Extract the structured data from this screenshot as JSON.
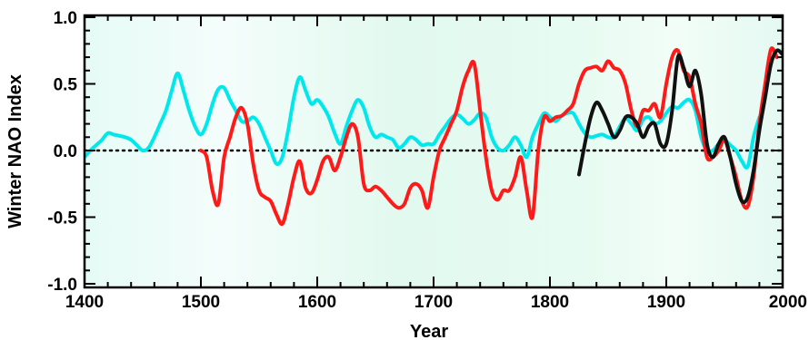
{
  "chart_data": {
    "type": "line",
    "title": "",
    "xlabel": "Year",
    "ylabel": "Winter NAO Index",
    "xlim": [
      1400,
      2000
    ],
    "ylim": [
      -1.05,
      1.0
    ],
    "x_ticks": [
      1400,
      1500,
      1600,
      1700,
      1800,
      1900,
      2000
    ],
    "x_tick_labels": [
      "1400",
      "1500",
      "1600",
      "1700",
      "1800",
      "1900",
      "2000"
    ],
    "y_ticks": [
      -1.0,
      -0.5,
      0.0,
      0.5,
      1.0
    ],
    "y_tick_labels": [
      "-1.0",
      "-0.5",
      "0.0",
      "0.5",
      "1.0"
    ],
    "zero_line": "dotted",
    "grid": false,
    "background": "gradient light green",
    "series": [
      {
        "color": "#00e8ec",
        "x": [
          1400,
          1405,
          1410,
          1415,
          1420,
          1425,
          1430,
          1435,
          1440,
          1445,
          1450,
          1455,
          1460,
          1465,
          1470,
          1475,
          1480,
          1485,
          1490,
          1495,
          1500,
          1505,
          1510,
          1515,
          1520,
          1525,
          1530,
          1535,
          1540,
          1545,
          1550,
          1555,
          1560,
          1565,
          1570,
          1575,
          1580,
          1585,
          1590,
          1595,
          1600,
          1605,
          1610,
          1615,
          1620,
          1625,
          1630,
          1635,
          1640,
          1645,
          1650,
          1655,
          1660,
          1665,
          1670,
          1675,
          1680,
          1685,
          1690,
          1695,
          1700,
          1705,
          1710,
          1715,
          1720,
          1725,
          1730,
          1735,
          1740,
          1745,
          1750,
          1755,
          1760,
          1765,
          1770,
          1775,
          1780,
          1785,
          1790,
          1795,
          1800,
          1805,
          1810,
          1815,
          1820,
          1825,
          1830,
          1835,
          1840,
          1845,
          1850,
          1855,
          1860,
          1865,
          1870,
          1875,
          1880,
          1885,
          1890,
          1895,
          1900,
          1905,
          1910,
          1915,
          1920,
          1925,
          1930,
          1935,
          1940,
          1945,
          1950,
          1955,
          1960,
          1965,
          1970,
          1975,
          1980
        ],
        "y": [
          -0.05,
          0.0,
          0.04,
          0.08,
          0.13,
          0.12,
          0.11,
          0.1,
          0.08,
          0.04,
          0.0,
          0.02,
          0.1,
          0.2,
          0.3,
          0.45,
          0.58,
          0.45,
          0.3,
          0.18,
          0.12,
          0.2,
          0.35,
          0.46,
          0.47,
          0.38,
          0.3,
          0.22,
          0.22,
          0.25,
          0.2,
          0.1,
          0.0,
          -0.1,
          -0.05,
          0.15,
          0.4,
          0.55,
          0.45,
          0.35,
          0.38,
          0.33,
          0.25,
          0.13,
          0.05,
          0.18,
          0.3,
          0.38,
          0.32,
          0.18,
          0.1,
          0.12,
          0.1,
          0.08,
          0.02,
          0.05,
          0.1,
          0.08,
          0.04,
          0.05,
          0.05,
          0.12,
          0.18,
          0.24,
          0.27,
          0.24,
          0.2,
          0.23,
          0.28,
          0.25,
          0.1,
          0.02,
          0.0,
          0.04,
          0.1,
          0.04,
          -0.05,
          0.1,
          0.2,
          0.28,
          0.25,
          0.22,
          0.26,
          0.28,
          0.28,
          0.2,
          0.13,
          0.1,
          0.11,
          0.12,
          0.1,
          0.1,
          0.18,
          0.24,
          0.2,
          0.15,
          0.23,
          0.25,
          0.2,
          0.22,
          0.28,
          0.33,
          0.32,
          0.36,
          0.38,
          0.3,
          0.1,
          0.0,
          0.0,
          0.05,
          0.08,
          0.04,
          0.0,
          -0.08,
          -0.12,
          0.1,
          0.25
        ]
      },
      {
        "color": "#ff1a1a",
        "x": [
          1500,
          1505,
          1510,
          1515,
          1520,
          1525,
          1530,
          1535,
          1540,
          1545,
          1550,
          1555,
          1560,
          1565,
          1570,
          1575,
          1580,
          1585,
          1590,
          1595,
          1600,
          1605,
          1610,
          1615,
          1620,
          1625,
          1630,
          1635,
          1640,
          1645,
          1650,
          1655,
          1660,
          1665,
          1670,
          1675,
          1680,
          1685,
          1690,
          1695,
          1700,
          1705,
          1710,
          1715,
          1720,
          1725,
          1730,
          1735,
          1740,
          1745,
          1750,
          1755,
          1760,
          1765,
          1770,
          1775,
          1780,
          1785,
          1790,
          1795,
          1800,
          1805,
          1810,
          1815,
          1820,
          1825,
          1830,
          1835,
          1840,
          1845,
          1850,
          1855,
          1860,
          1865,
          1870,
          1875,
          1880,
          1885,
          1890,
          1895,
          1900,
          1905,
          1910,
          1915,
          1920,
          1925,
          1930,
          1935,
          1940,
          1945,
          1950,
          1955,
          1960,
          1965,
          1970,
          1975,
          1980,
          1985,
          1990,
          1995
        ],
        "y": [
          0.0,
          -0.05,
          -0.3,
          -0.4,
          -0.05,
          0.1,
          0.25,
          0.32,
          0.2,
          -0.1,
          -0.3,
          -0.35,
          -0.38,
          -0.48,
          -0.55,
          -0.4,
          -0.2,
          -0.08,
          -0.28,
          -0.32,
          -0.22,
          -0.08,
          -0.05,
          -0.15,
          -0.05,
          0.1,
          0.2,
          0.1,
          -0.25,
          -0.3,
          -0.27,
          -0.3,
          -0.35,
          -0.4,
          -0.43,
          -0.4,
          -0.28,
          -0.25,
          -0.3,
          -0.43,
          -0.2,
          0.0,
          0.1,
          0.2,
          0.3,
          0.48,
          0.6,
          0.65,
          0.3,
          -0.05,
          -0.3,
          -0.37,
          -0.3,
          -0.3,
          -0.2,
          -0.05,
          -0.3,
          -0.5,
          0.0,
          0.25,
          0.22,
          0.25,
          0.26,
          0.3,
          0.35,
          0.5,
          0.6,
          0.62,
          0.63,
          0.6,
          0.67,
          0.62,
          0.6,
          0.5,
          0.3,
          0.18,
          0.3,
          0.3,
          0.35,
          0.25,
          0.5,
          0.7,
          0.75,
          0.6,
          0.55,
          0.35,
          0.2,
          -0.05,
          -0.05,
          0.0,
          0.08,
          -0.05,
          -0.2,
          -0.38,
          -0.42,
          -0.2,
          0.2,
          0.5,
          0.76,
          0.7
        ]
      },
      {
        "color": "#111111",
        "x": [
          1825,
          1830,
          1835,
          1840,
          1845,
          1850,
          1855,
          1860,
          1865,
          1870,
          1875,
          1880,
          1885,
          1890,
          1895,
          1900,
          1905,
          1910,
          1915,
          1920,
          1925,
          1930,
          1935,
          1940,
          1945,
          1950,
          1955,
          1960,
          1965,
          1970,
          1975,
          1980,
          1985,
          1990,
          1995,
          2000
        ],
        "y": [
          -0.18,
          0.05,
          0.25,
          0.36,
          0.3,
          0.2,
          0.1,
          0.15,
          0.25,
          0.25,
          0.2,
          0.1,
          0.18,
          0.2,
          0.05,
          0.05,
          0.3,
          0.7,
          0.62,
          0.48,
          0.6,
          0.42,
          0.05,
          -0.05,
          0.05,
          0.1,
          -0.05,
          -0.25,
          -0.38,
          -0.35,
          -0.15,
          0.15,
          0.4,
          0.65,
          0.75,
          0.72
        ]
      }
    ]
  }
}
